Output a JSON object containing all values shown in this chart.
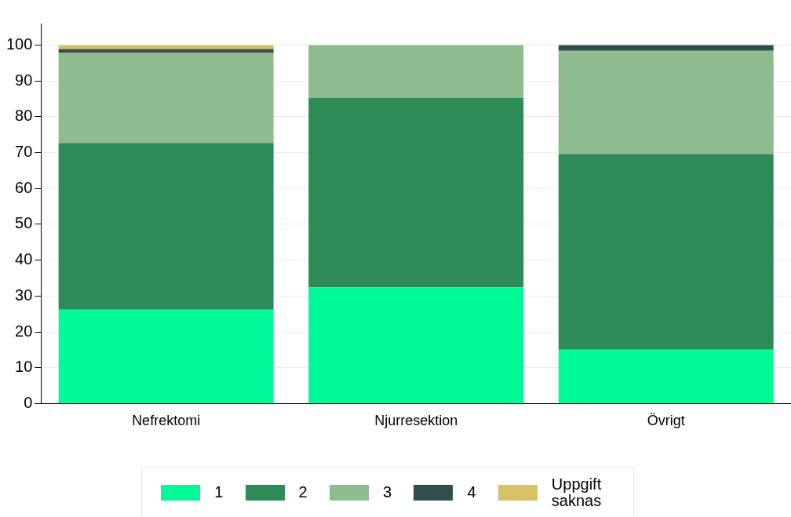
{
  "chart_data": {
    "type": "bar",
    "stacked": true,
    "categories": [
      "Nefrektomi",
      "Njurresektion",
      "Övrigt"
    ],
    "series": [
      {
        "name": "1",
        "color": "#00fa9a",
        "values": [
          26.2,
          32.4,
          15.0
        ]
      },
      {
        "name": "2",
        "color": "#2e8b57",
        "values": [
          46.5,
          52.8,
          54.6
        ]
      },
      {
        "name": "3",
        "color": "#8fbc8f",
        "values": [
          25.1,
          14.8,
          28.8
        ]
      },
      {
        "name": "4",
        "color": "#2f4f4f",
        "values": [
          1.1,
          null,
          1.6
        ]
      },
      {
        "name": "Uppgift saknas",
        "color": "#d8c166",
        "values": [
          1.1,
          null,
          null
        ]
      }
    ],
    "ylim": [
      0,
      106
    ],
    "yticks": [
      0,
      10,
      20,
      30,
      40,
      50,
      60,
      70,
      80,
      90,
      100
    ],
    "grid": "y",
    "legend": "bottom"
  }
}
